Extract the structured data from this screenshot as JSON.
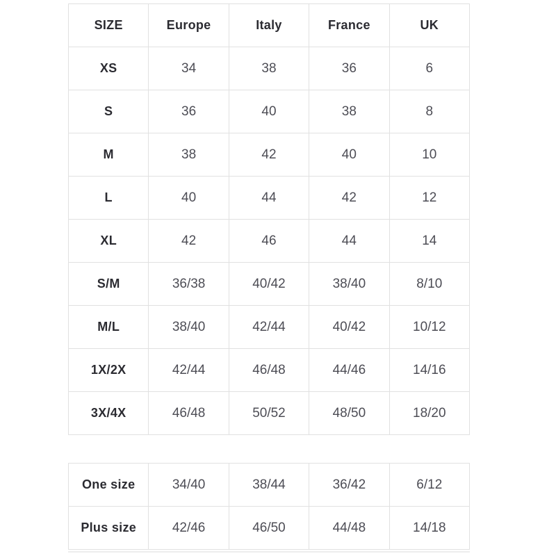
{
  "page": {
    "background": "#ffffff",
    "border_color": "#e1e1e1",
    "label_text_color": "#2b2b31",
    "value_text_color": "#4d4d55"
  },
  "size_chart": {
    "columns": [
      "SIZE",
      "Europe",
      "Italy",
      "France",
      "UK"
    ],
    "rows": [
      {
        "size": "XS",
        "values": [
          "34",
          "38",
          "36",
          "6"
        ]
      },
      {
        "size": "S",
        "values": [
          "36",
          "40",
          "38",
          "8"
        ]
      },
      {
        "size": "M",
        "values": [
          "38",
          "42",
          "40",
          "10"
        ]
      },
      {
        "size": "L",
        "values": [
          "40",
          "44",
          "42",
          "12"
        ]
      },
      {
        "size": "XL",
        "values": [
          "42",
          "46",
          "44",
          "14"
        ]
      },
      {
        "size": "S/M",
        "values": [
          "36/38",
          "40/42",
          "38/40",
          "8/10"
        ]
      },
      {
        "size": "M/L",
        "values": [
          "38/40",
          "42/44",
          "40/42",
          "10/12"
        ]
      },
      {
        "size": "1X/2X",
        "values": [
          "42/44",
          "46/48",
          "44/46",
          "14/16"
        ]
      },
      {
        "size": "3X/4X",
        "values": [
          "46/48",
          "50/52",
          "48/50",
          "18/20"
        ]
      }
    ]
  },
  "special_sizes": {
    "rows": [
      {
        "size": "One size",
        "values": [
          "34/40",
          "38/44",
          "36/42",
          "6/12"
        ]
      },
      {
        "size": "Plus size",
        "values": [
          "42/46",
          "46/50",
          "44/48",
          "14/18"
        ]
      }
    ]
  }
}
